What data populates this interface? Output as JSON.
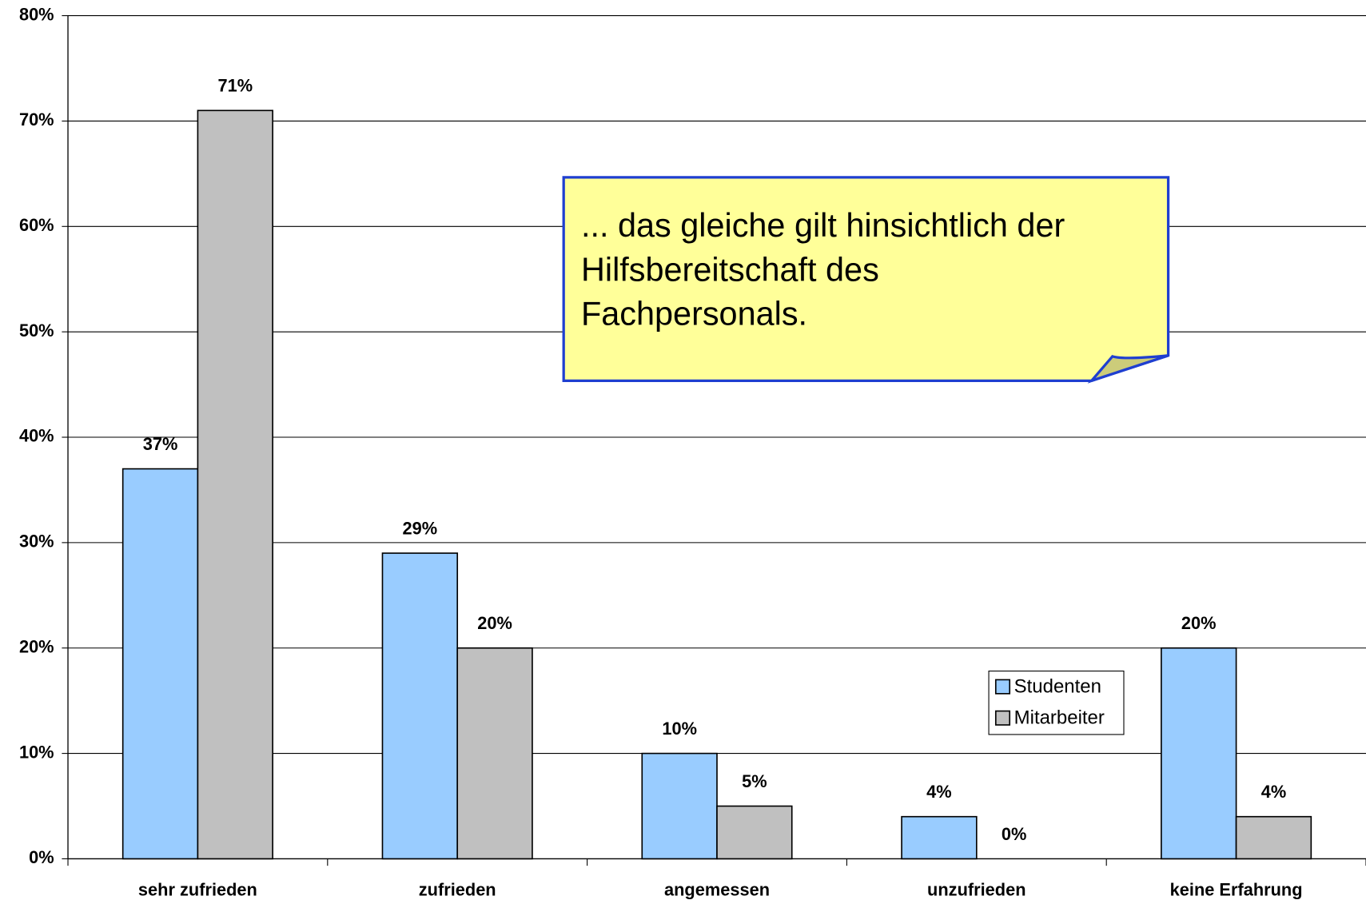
{
  "chart_data": {
    "type": "bar",
    "categories": [
      "sehr zufrieden",
      "zufrieden",
      "angemessen",
      "unzufrieden",
      "keine Erfahrung"
    ],
    "series": [
      {
        "name": "Studenten",
        "color": "#99ccff",
        "values": [
          37,
          29,
          10,
          4,
          20
        ],
        "value_labels": [
          "37%",
          "29%",
          "10%",
          "4%",
          "20%"
        ]
      },
      {
        "name": "Mitarbeiter",
        "color": "#c0c0c0",
        "values": [
          71,
          20,
          5,
          0,
          4
        ],
        "value_labels": [
          "71%",
          "20%",
          "5%",
          "0%",
          "4%"
        ]
      }
    ],
    "ylim": [
      0,
      80
    ],
    "yticks": [
      {
        "value": 0,
        "label": "0%"
      },
      {
        "value": 10,
        "label": "10%"
      },
      {
        "value": 20,
        "label": "20%"
      },
      {
        "value": 30,
        "label": "30%"
      },
      {
        "value": 40,
        "label": "40%"
      },
      {
        "value": 50,
        "label": "50%"
      },
      {
        "value": 60,
        "label": "60%"
      },
      {
        "value": 70,
        "label": "70%"
      },
      {
        "value": 80,
        "label": "80%"
      }
    ],
    "grid": true,
    "annotation": [
      "... das gleiche gilt hinsichtlich der",
      "Hilfsbereitschaft des",
      "Fachpersonals."
    ]
  }
}
